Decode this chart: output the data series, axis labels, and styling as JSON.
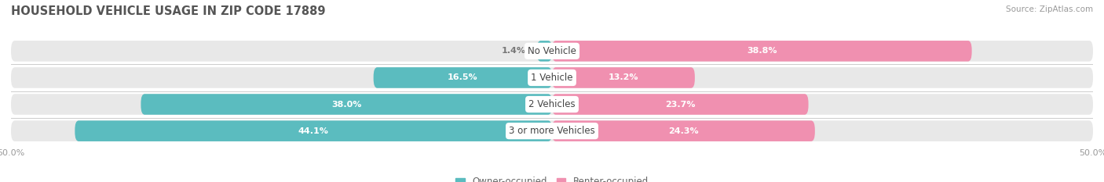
{
  "title": "HOUSEHOLD VEHICLE USAGE IN ZIP CODE 17889",
  "source": "Source: ZipAtlas.com",
  "categories": [
    "No Vehicle",
    "1 Vehicle",
    "2 Vehicles",
    "3 or more Vehicles"
  ],
  "owner_values": [
    1.4,
    16.5,
    38.0,
    44.1
  ],
  "renter_values": [
    38.8,
    13.2,
    23.7,
    24.3
  ],
  "owner_color": "#5bbcbf",
  "renter_color": "#f090b0",
  "bar_bg_color": "#e8e8e8",
  "axis_limit": 50.0,
  "bar_height": 0.78,
  "title_fontsize": 10.5,
  "source_fontsize": 7.5,
  "label_fontsize": 8.5,
  "tick_fontsize": 8,
  "legend_fontsize": 8.5,
  "value_fontsize": 8
}
